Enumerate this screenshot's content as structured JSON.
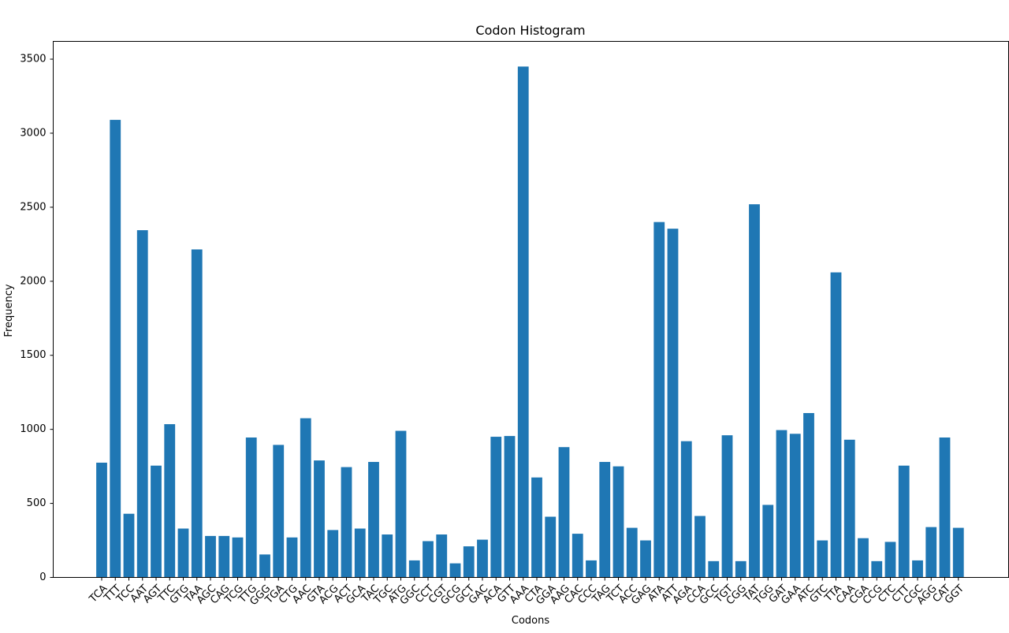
{
  "chart_data": {
    "type": "bar",
    "title": "Codon Histogram",
    "xlabel": "Codons",
    "ylabel": "Frequency",
    "ylim": [
      0,
      3620
    ],
    "yticks": [
      0,
      500,
      1000,
      1500,
      2000,
      2500,
      3000,
      3500
    ],
    "color": "#1f77b4",
    "grid": false,
    "categories": [
      "TCA",
      "TTT",
      "TCC",
      "AAT",
      "AGT",
      "TTC",
      "GTG",
      "TAA",
      "AGC",
      "CAG",
      "TCG",
      "TTG",
      "GGG",
      "TGA",
      "CTG",
      "AAC",
      "GTA",
      "ACG",
      "ACT",
      "GCA",
      "TAC",
      "TGC",
      "ATG",
      "GGC",
      "CCT",
      "CGT",
      "GCG",
      "GCT",
      "GAC",
      "ACA",
      "GTT",
      "AAA",
      "CTA",
      "GGA",
      "AAG",
      "CAC",
      "CCC",
      "TAG",
      "TCT",
      "ACC",
      "GAG",
      "ATA",
      "ATT",
      "AGA",
      "CCA",
      "GCC",
      "TGT",
      "CGG",
      "TAT",
      "TGG",
      "GAT",
      "GAA",
      "ATC",
      "GTC",
      "TTA",
      "CAA",
      "CGA",
      "CCG",
      "CTC",
      "CTT",
      "CGC",
      "AGG",
      "CAT",
      "GGT"
    ],
    "values": [
      775,
      3090,
      430,
      2345,
      755,
      1035,
      330,
      2215,
      280,
      280,
      270,
      945,
      155,
      895,
      270,
      1075,
      790,
      320,
      745,
      330,
      780,
      290,
      990,
      115,
      245,
      290,
      95,
      210,
      255,
      950,
      955,
      3450,
      675,
      410,
      880,
      295,
      115,
      780,
      750,
      335,
      250,
      2400,
      2355,
      920,
      415,
      110,
      960,
      110,
      2520,
      490,
      995,
      970,
      1110,
      250,
      2060,
      930,
      265,
      110,
      240,
      755,
      115,
      340,
      945,
      335
    ]
  }
}
